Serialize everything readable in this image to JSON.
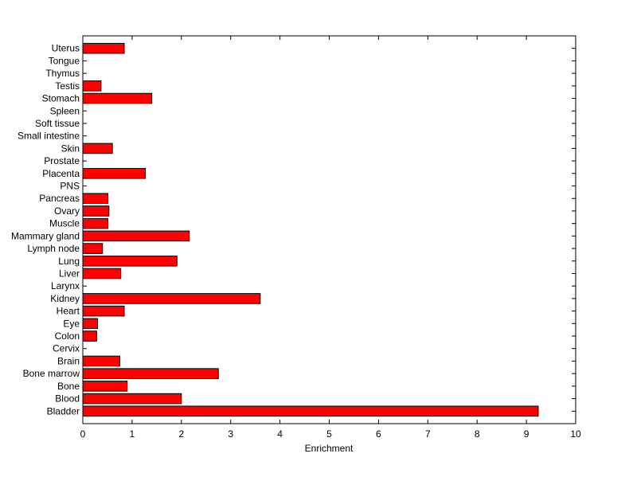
{
  "chart_data": {
    "type": "bar",
    "orientation": "horizontal",
    "title": "",
    "xlabel": "Enrichment",
    "ylabel": "",
    "xlim": [
      0,
      10
    ],
    "xticks": [
      "0",
      "1",
      "2",
      "3",
      "4",
      "5",
      "6",
      "7",
      "8",
      "9",
      "10"
    ],
    "grid": false,
    "bar_color": "#ff0000",
    "edge_color": "#000000",
    "categories": [
      "Bladder",
      "Blood",
      "Bone",
      "Bone marrow",
      "Brain",
      "Cervix",
      "Colon",
      "Eye",
      "Heart",
      "Kidney",
      "Larynx",
      "Liver",
      "Lung",
      "Lymph node",
      "Mammary gland",
      "Muscle",
      "Ovary",
      "Pancreas",
      "PNS",
      "Placenta",
      "Prostate",
      "Skin",
      "Small intestine",
      "Soft tissue",
      "Spleen",
      "Stomach",
      "Testis",
      "Thymus",
      "Tongue",
      "Uterus"
    ],
    "values": [
      9.24,
      2.0,
      0.9,
      2.75,
      0.75,
      0,
      0.28,
      0.3,
      0.84,
      3.6,
      0,
      0.77,
      1.91,
      0.4,
      2.16,
      0.51,
      0.53,
      0.51,
      0,
      1.27,
      0,
      0.6,
      0,
      0,
      0,
      1.4,
      0.37,
      0,
      0,
      0.84
    ]
  }
}
